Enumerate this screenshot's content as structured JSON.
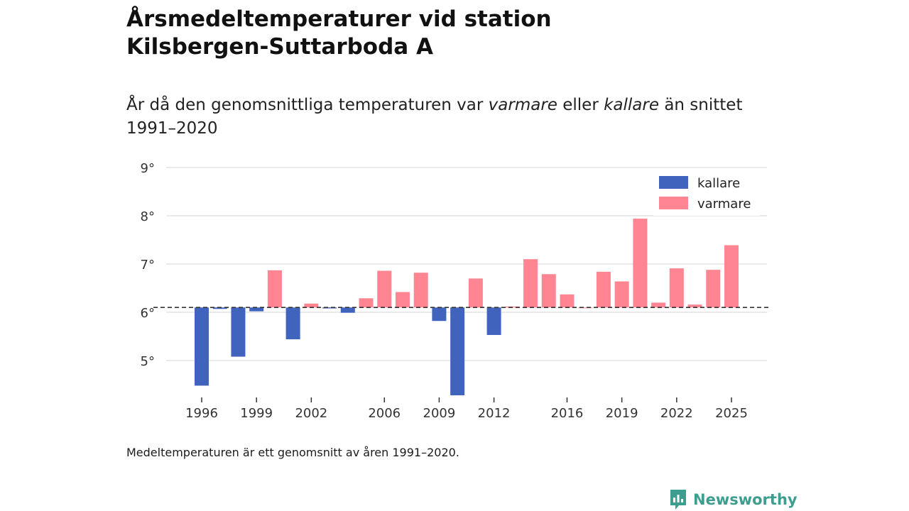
{
  "header": {
    "title_line1": "Årsmedeltemperaturer vid station",
    "title_line2": "Kilsbergen-Suttarboda A",
    "subtitle_prefix": "År då den genomsnittliga temperaturen var ",
    "subtitle_warm": "varmare",
    "subtitle_mid": " eller ",
    "subtitle_cold": "kallare",
    "subtitle_suffix": " än snittet",
    "subtitle_line2": "1991–2020"
  },
  "footer": {
    "note": "Medeltemperaturen är ett genomsnitt av åren 1991–2020.",
    "brand": "Newsworthy"
  },
  "colors": {
    "kallare": "#4063be",
    "varmare": "#ff8592",
    "baseline": "#333333",
    "grid": "#dddddd",
    "brand": "#3d9e8f"
  },
  "chart_data": {
    "type": "bar",
    "title": "Årsmedeltemperaturer vid station Kilsbergen-Suttarboda A",
    "subtitle": "År då den genomsnittliga temperaturen var varmare eller kallare än snittet 1991–2020",
    "baseline": 6.1,
    "ylim": [
      4.2,
      9.0
    ],
    "yticks": [
      5,
      6,
      7,
      8,
      9
    ],
    "ytick_labels": [
      "5°",
      "6°",
      "7°",
      "8°",
      "9°"
    ],
    "xticks": [
      1996,
      1999,
      2002,
      2006,
      2009,
      2012,
      2016,
      2019,
      2022,
      2025
    ],
    "xtick_labels": [
      "1996",
      "1999",
      "2002",
      "2006",
      "2009",
      "2012",
      "2016",
      "2019",
      "2022",
      "2025"
    ],
    "xlim": [
      1995,
      2026
    ],
    "legend": [
      {
        "name": "kallare",
        "color": "#4063be"
      },
      {
        "name": "varmare",
        "color": "#ff8592"
      }
    ],
    "legend_position": "top-right",
    "grid": true,
    "years": [
      1996,
      1997,
      1998,
      1999,
      2000,
      2001,
      2002,
      2003,
      2004,
      2005,
      2006,
      2007,
      2008,
      2009,
      2010,
      2011,
      2012,
      2013,
      2014,
      2015,
      2016,
      2017,
      2018,
      2019,
      2020,
      2021,
      2022,
      2023,
      2024,
      2025
    ],
    "values": [
      4.48,
      6.07,
      5.08,
      6.02,
      6.87,
      5.44,
      6.18,
      6.08,
      5.99,
      6.29,
      6.86,
      6.42,
      6.82,
      5.82,
      4.28,
      6.7,
      5.53,
      6.12,
      7.1,
      6.79,
      6.37,
      6.1,
      6.84,
      6.64,
      7.94,
      6.2,
      6.91,
      6.16,
      6.88,
      7.39
    ]
  }
}
